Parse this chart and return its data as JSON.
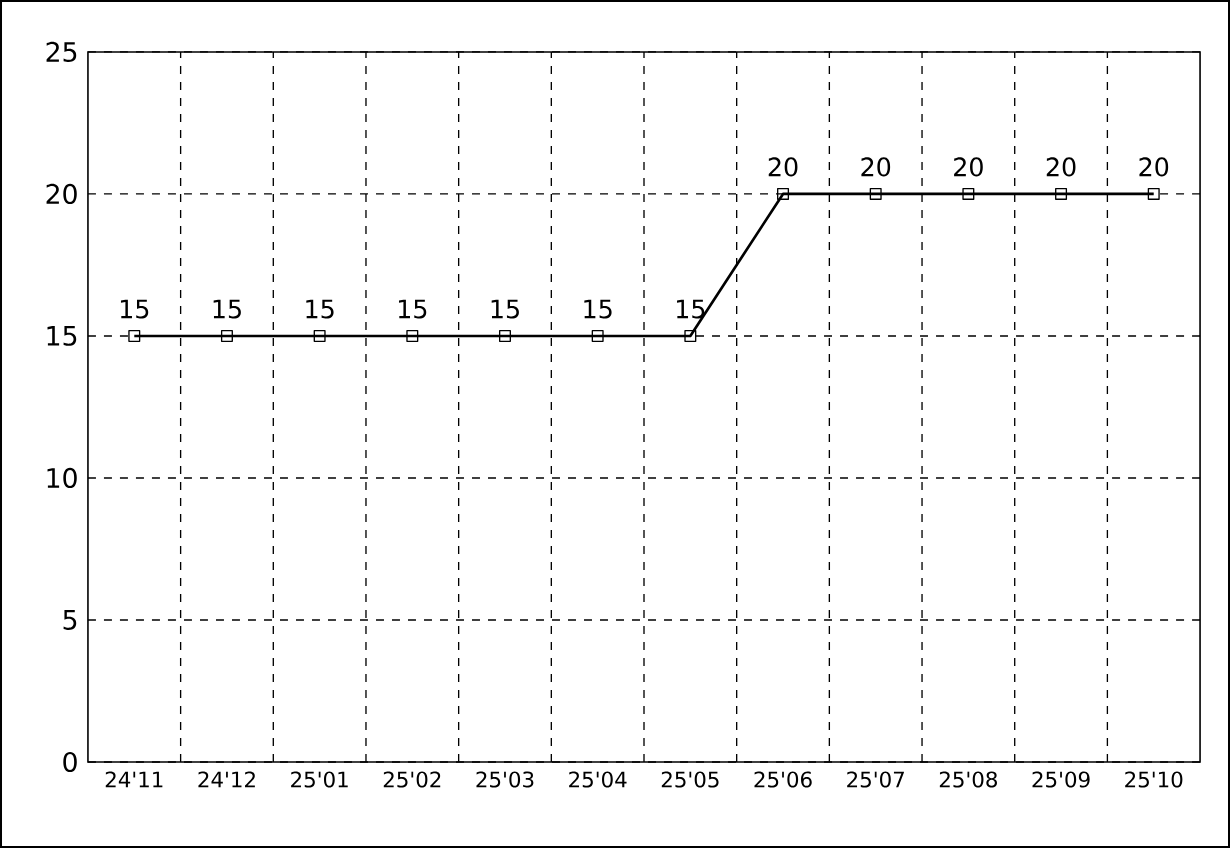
{
  "chart_data": {
    "type": "line",
    "categories": [
      "24'11",
      "24'12",
      "25'01",
      "25'02",
      "25'03",
      "25'04",
      "25'05",
      "25'06",
      "25'07",
      "25'08",
      "25'09",
      "25'10"
    ],
    "values": [
      15,
      15,
      15,
      15,
      15,
      15,
      15,
      20,
      20,
      20,
      20,
      20
    ],
    "color": "#000000",
    "ylim": [
      0,
      25
    ],
    "yticks": [
      0,
      5,
      10,
      15,
      20,
      25
    ],
    "grid": true,
    "marker": "square",
    "line_style": "solid",
    "data_labels": true
  }
}
